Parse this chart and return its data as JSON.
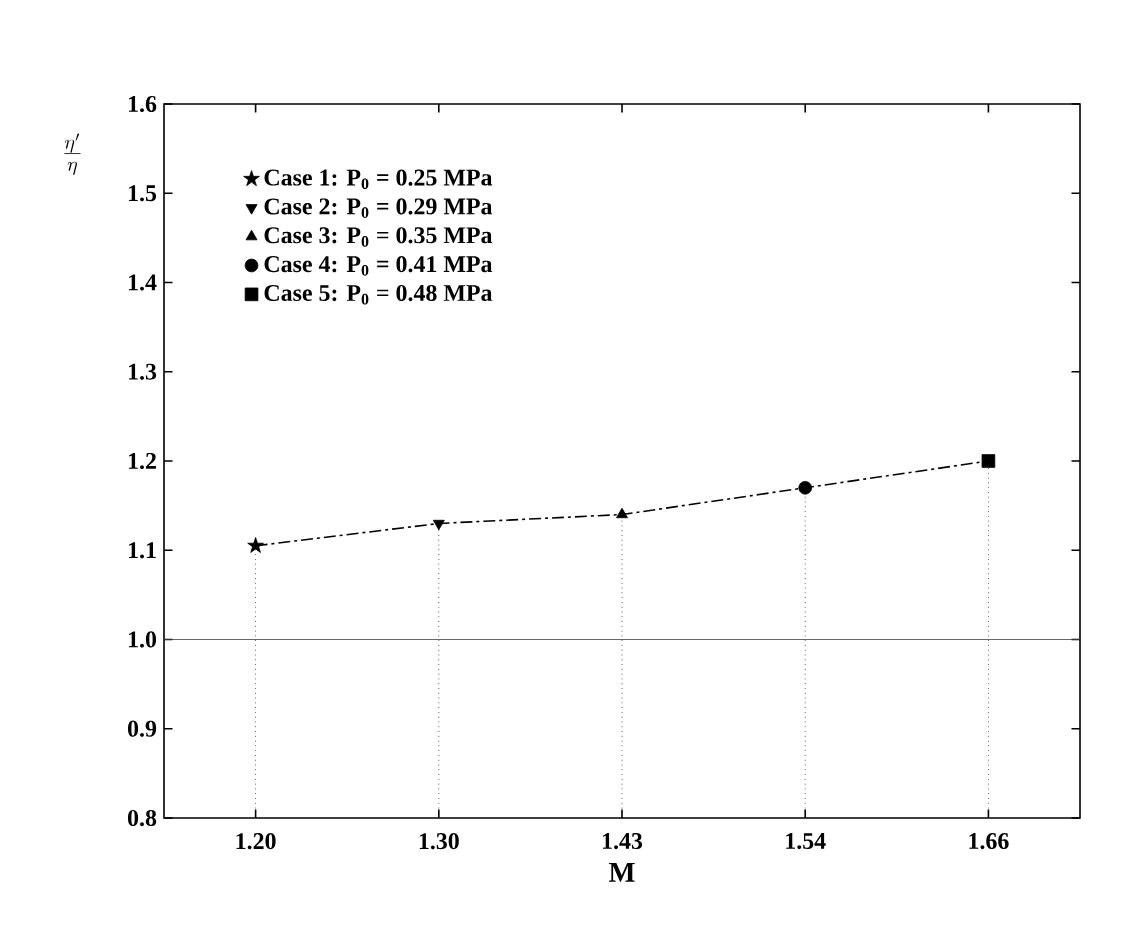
{
  "chart_data": {
    "type": "lollipop",
    "xlabel": "M",
    "ylabel": "\\frac{\\eta'}{\\eta}",
    "categories": [
      "1.20",
      "1.30",
      "1.43",
      "1.54",
      "1.66"
    ],
    "series": [
      {
        "type": "line",
        "color": "#000000",
        "line_style": "dashdotted",
        "marker": "none",
        "values": [
          1.105,
          1.13,
          1.14,
          1.17,
          1.2
        ]
      },
      {
        "name": "Case 1: P$_{0}$ = 0.25 MPa",
        "color": "#000000",
        "marker": "star",
        "line_style": "dotted",
        "values": [
          1.105,
          null,
          null,
          null,
          null
        ]
      },
      {
        "name": "Case 2: P$_{0}$ = 0.29 MPa",
        "color": "#000000",
        "marker": "triangle_down",
        "line_style": "dotted",
        "values": [
          null,
          1.13,
          null,
          null,
          null
        ]
      },
      {
        "name": "Case 3: P$_{0}$ = 0.35 MPa",
        "color": "#000000",
        "marker": "triangle",
        "line_style": "dotted",
        "values": [
          null,
          null,
          1.14,
          null,
          null
        ]
      },
      {
        "name": "Case 4: P$_{0}$ = 0.41 MPa",
        "color": "#000000",
        "marker": "circle",
        "line_style": "dotted",
        "values": [
          null,
          null,
          null,
          1.17,
          null
        ]
      },
      {
        "name": "Case 5: P$_{0}$ = 0.48 MPa",
        "color": "#000000",
        "marker": "square",
        "line_style": "dotted",
        "values": [
          null,
          null,
          null,
          null,
          1.2
        ]
      }
    ],
    "ylim": [
      0.8,
      1.6
    ],
    "yticks": [
      0.8,
      0.9,
      {
        "value": 1.0,
        "label": "1.0"
      },
      1.1,
      1.2,
      1.3,
      1.4,
      1.5,
      1.6
    ],
    "ref_lines": [
      {
        "axis": "y",
        "value": 1.0,
        "color": "#404040",
        "line_style": "solid"
      }
    ],
    "legend": "top left",
    "grid": false
  }
}
